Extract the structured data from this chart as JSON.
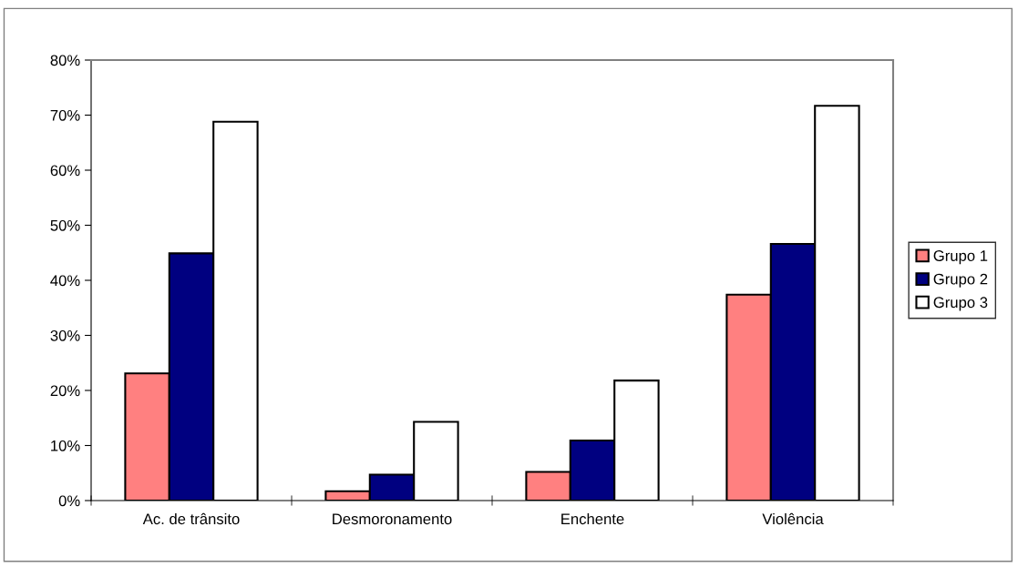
{
  "chart_data": {
    "type": "bar",
    "categories": [
      "Ac. de trânsito",
      "Desmoronamento",
      "Enchente",
      "Violência"
    ],
    "series": [
      {
        "name": "Grupo 1",
        "color": "#ff8080",
        "values": [
          23.1,
          1.7,
          5.2,
          37.4
        ]
      },
      {
        "name": "Grupo 2",
        "color": "#000080",
        "values": [
          44.9,
          4.7,
          10.9,
          46.6
        ]
      },
      {
        "name": "Grupo 3",
        "color": "#ffffff",
        "values": [
          68.8,
          14.3,
          21.8,
          71.7
        ]
      }
    ],
    "ylim": [
      0,
      80
    ],
    "yticks": [
      {
        "value": 0,
        "label": "0%"
      },
      {
        "value": 10,
        "label": "10%"
      },
      {
        "value": 20,
        "label": "20%"
      },
      {
        "value": 30,
        "label": "30%"
      },
      {
        "value": 40,
        "label": "40%"
      },
      {
        "value": 50,
        "label": "50%"
      },
      {
        "value": 60,
        "label": "60%"
      },
      {
        "value": 70,
        "label": "70%"
      },
      {
        "value": 80,
        "label": "80%"
      }
    ],
    "grid": false,
    "legend": "right"
  }
}
